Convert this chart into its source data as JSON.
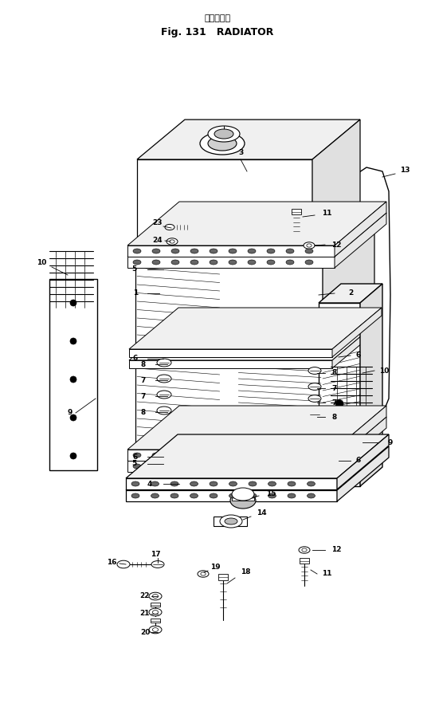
{
  "title_jp": "ラジエータ",
  "title_en": "Fig. 131   RADIATOR",
  "bg": "#ffffff",
  "lc": "#000000",
  "fig_w": 5.46,
  "fig_h": 8.92,
  "dpi": 100
}
